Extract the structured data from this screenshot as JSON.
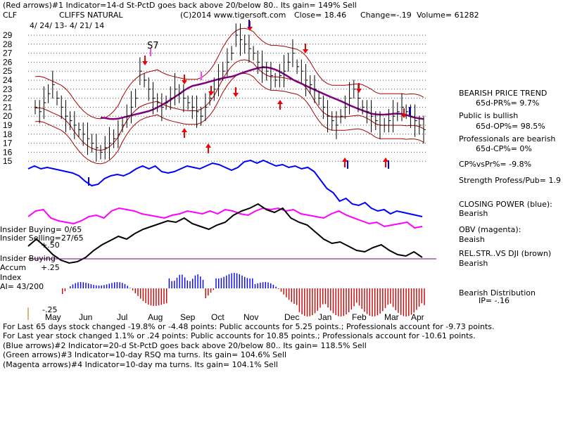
{
  "header": {
    "line1": "(Red arrows)#1 Indicator=14-d St-PctD goes back above 20/below 80.. Its gain= 149% Sell",
    "ticker": "CLF",
    "name": "CLIFFS NATURAL",
    "copyright": "(C)2014 www.tigersoft.com",
    "close": "Close=  18.46",
    "change": "Change=-.19",
    "volume": "Volume= 61282",
    "date_range": "4/ 24/ 13-  4/ 21/ 14"
  },
  "right_panel": {
    "bearish_price_trend": "BEARISH PRICE TREND",
    "pr_pct": "65d-PR%= 9.7%",
    "public_bullish": "Public is bullish",
    "op_pct": "65d-OP%= 98.5%",
    "professionals_bearish": "Professionals are bearish",
    "cp_pct": "65d-CP%= 0%",
    "cpvspr": "CP%vsPr%= -9.8%",
    "strength": "Strength Profess/Pub= 1.9",
    "closing_power": "CLOSING POWER (blue):",
    "closing_power_val": "Bearish",
    "obv": "OBV (magenta):",
    "obv_val": "Beaish",
    "relstr": "REL.STR..VS DJI (brown)",
    "relstr_val": "Bearish",
    "bearish_dist": "Bearish Distribution",
    "ip": "IP= -.16"
  },
  "left_labels": {
    "insider_buying_1": "Insider Buying= 0/65",
    "insider_selling": "Insider Selling=27/65",
    "plus50": "+.50",
    "insider_buying_2": "Insider Buying",
    "accum": "Accum",
    "plus25": "+.25",
    "index": "Index",
    "ai": "AI= 43/200",
    "minus25": "-.25"
  },
  "annotation_s7": "S7",
  "footer": {
    "line1": "For Last 65 days stock changed -19.8% or -4.48 points:  Public accounts for  5.25 points.;  Professionals account for -9.73 points.",
    "line2": "For Last year stock changed  1.1% or  .24 points:  Public accounts for  10.85 points.;  Professionals account for -10.61 points.",
    "line3": "(Blue arrows)#2 Indicator=20-d St-PctD goes back above 20/below 80.. Its gain= 118.5% Sell",
    "line4": "(Green arrows)#3 Indicator=10-day RSQ ma turns. Its gain= 104.6% Sell",
    "line5": "(Magenta arrows)#4 Indicator=10-day ma turns. Its gain= 104.1% Sell"
  },
  "colors": {
    "price_bars": "#000000",
    "bands": "#aa0000",
    "ma": "#800080",
    "closing_power": "#0000ff",
    "obv": "#ff00ff",
    "relstr": "#000000",
    "accum_pos": "#0000ff",
    "accum_neg": "#cc0000",
    "baseline": "#800080"
  },
  "chart_data": {
    "type": "line",
    "title": "CLIFFS NATURAL",
    "months": [
      "May",
      "Jun",
      "Jul",
      "Aug",
      "Sep",
      "Oct",
      "Nov",
      "Dec",
      "Jan",
      "Feb",
      "Mar",
      "Apr"
    ],
    "y_ticks": [
      29,
      28,
      27,
      26,
      25,
      24,
      23,
      22,
      21,
      20,
      19,
      18,
      17,
      16,
      15
    ],
    "ylim": [
      15,
      29
    ],
    "series": [
      {
        "name": "CLIFFS NATURAL",
        "values": [
          21,
          20.5,
          21.5,
          22.5,
          23.5,
          22,
          21,
          20,
          19.5,
          19,
          18.5,
          18,
          17.5,
          17,
          16.5,
          16,
          16.5,
          17,
          17.5,
          18,
          19,
          20,
          21,
          22,
          25,
          24,
          23,
          22,
          21.5,
          21,
          21.5,
          22,
          23,
          22.5,
          22,
          21.5,
          21,
          20.5,
          20,
          21,
          22,
          23,
          24,
          25,
          26,
          27,
          29,
          28.5,
          28,
          27.5,
          27,
          26,
          25.5,
          25,
          24.5,
          24,
          24.5,
          25,
          26,
          27,
          25.5,
          25,
          24,
          23.5,
          23,
          22,
          21,
          20,
          19.5,
          19,
          20,
          21,
          22,
          23,
          22,
          21,
          20.5,
          20,
          19.5,
          19,
          19,
          19.5,
          20,
          20.5,
          21,
          20.5,
          20,
          19.5,
          19,
          18.5
        ]
      }
    ]
  }
}
